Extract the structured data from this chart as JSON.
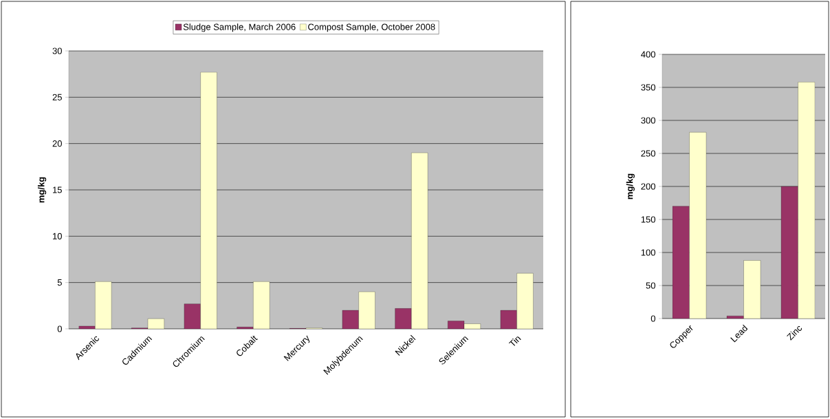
{
  "chart_data": [
    {
      "type": "bar",
      "ylabel": "mg/kg",
      "categories": [
        "Arsenic",
        "Cadmium",
        "Chromium",
        "Cobalt",
        "Mercury",
        "Molybdenum",
        "Nickel",
        "Selenium",
        "Tin"
      ],
      "series": [
        {
          "name": "Sludge Sample, March 2006",
          "color": "#993366",
          "values": [
            0.3,
            0.1,
            2.7,
            0.2,
            0.05,
            2.0,
            2.2,
            0.85,
            2.0
          ]
        },
        {
          "name": "Compost Sample, October 2008",
          "color": "#ffffcc",
          "values": [
            5.1,
            1.1,
            27.7,
            5.1,
            0.1,
            4.0,
            19.0,
            0.55,
            6.0
          ]
        }
      ],
      "ylim": [
        0,
        30
      ],
      "yticks": [
        0,
        5,
        10,
        15,
        20,
        25,
        30
      ],
      "grid": "y",
      "legend": "top"
    },
    {
      "type": "bar",
      "ylabel": "mg/kg",
      "categories": [
        "Copper",
        "Lead",
        "Zinc"
      ],
      "series": [
        {
          "color": "#993366",
          "values": [
            170,
            4,
            200
          ]
        },
        {
          "color": "#ffffcc",
          "values": [
            282,
            88,
            358
          ]
        }
      ],
      "ylim": [
        0,
        400
      ],
      "yticks": [
        0,
        50,
        100,
        150,
        200,
        250,
        300,
        350,
        400
      ],
      "grid": "y"
    }
  ]
}
